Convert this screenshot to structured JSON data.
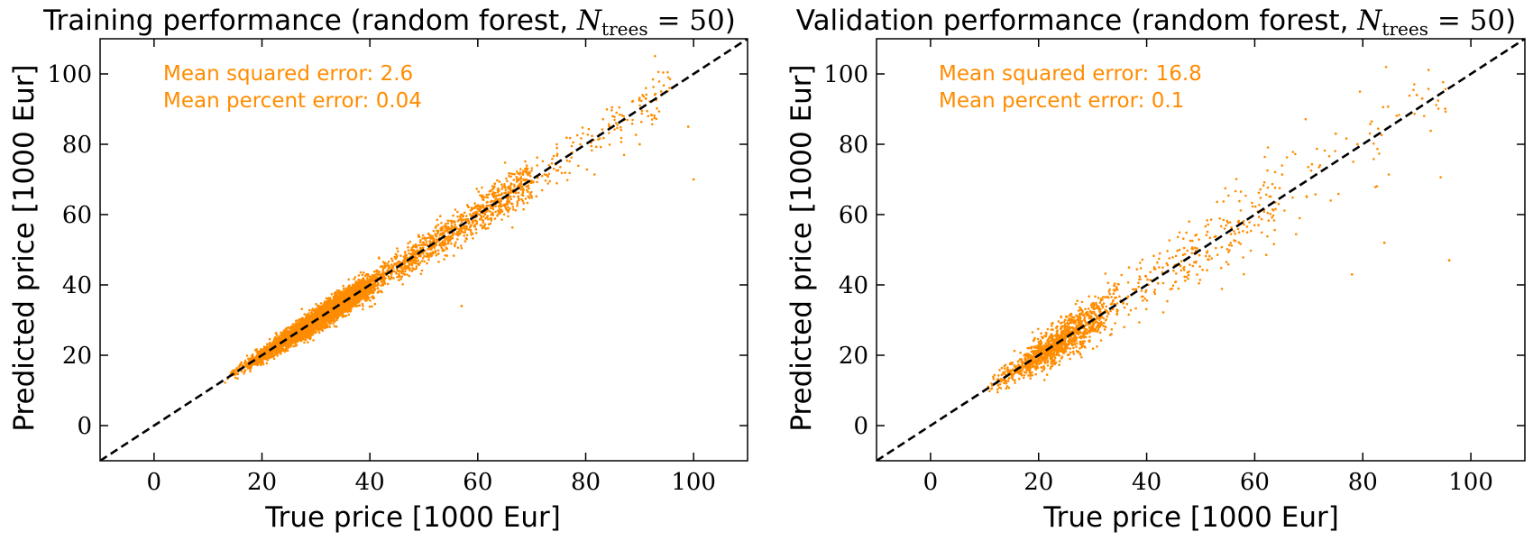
{
  "chart_data": [
    {
      "type": "scatter",
      "title_main": "Training performance (random forest, ",
      "title_symbol": "N",
      "title_subscript": "trees",
      "title_equals": " = 50",
      "title_close": ")",
      "xlabel": "True price [1000 Eur]",
      "ylabel": "Predicted price [1000 Eur]",
      "xlim": [
        -10,
        110
      ],
      "ylim": [
        -10,
        110
      ],
      "xticks": [
        0,
        20,
        40,
        60,
        80,
        100
      ],
      "yticks": [
        0,
        20,
        40,
        60,
        80,
        100
      ],
      "annotations": [
        "Mean squared error: 2.6",
        "Mean percent error: 0.04"
      ],
      "reference_line": "y = x (black dashed)",
      "point_color": "#ff8c00",
      "approx_points": 6000,
      "residual_sigma_rel": 0.045,
      "x_distribution": "concentrated 15-45, tail to ~100",
      "notable_points": [
        [
          100,
          70
        ],
        [
          90,
          80
        ],
        [
          94,
          95
        ],
        [
          96,
          96
        ],
        [
          99,
          85
        ],
        [
          57,
          34
        ]
      ]
    },
    {
      "type": "scatter",
      "title_main": "Validation performance (random forest, ",
      "title_symbol": "N",
      "title_subscript": "trees",
      "title_equals": " = 50",
      "title_close": ")",
      "xlabel": "True price [1000 Eur]",
      "ylabel": "Predicted price [1000 Eur]",
      "xlim": [
        -10,
        110
      ],
      "ylim": [
        -10,
        110
      ],
      "xticks": [
        0,
        20,
        40,
        60,
        80,
        100
      ],
      "yticks": [
        0,
        20,
        40,
        60,
        80,
        100
      ],
      "annotations": [
        "Mean squared error: 16.8",
        "Mean percent error: 0.1"
      ],
      "reference_line": "y = x (black dashed)",
      "point_color": "#ff8c00",
      "approx_points": 1500,
      "residual_sigma_rel": 0.1,
      "x_distribution": "concentrated 10-40, tail to ~100",
      "notable_points": [
        [
          96,
          47
        ],
        [
          84,
          52
        ],
        [
          78,
          43
        ],
        [
          75,
          83
        ],
        [
          91,
          93
        ],
        [
          90,
          94
        ],
        [
          79,
          80
        ]
      ]
    }
  ]
}
